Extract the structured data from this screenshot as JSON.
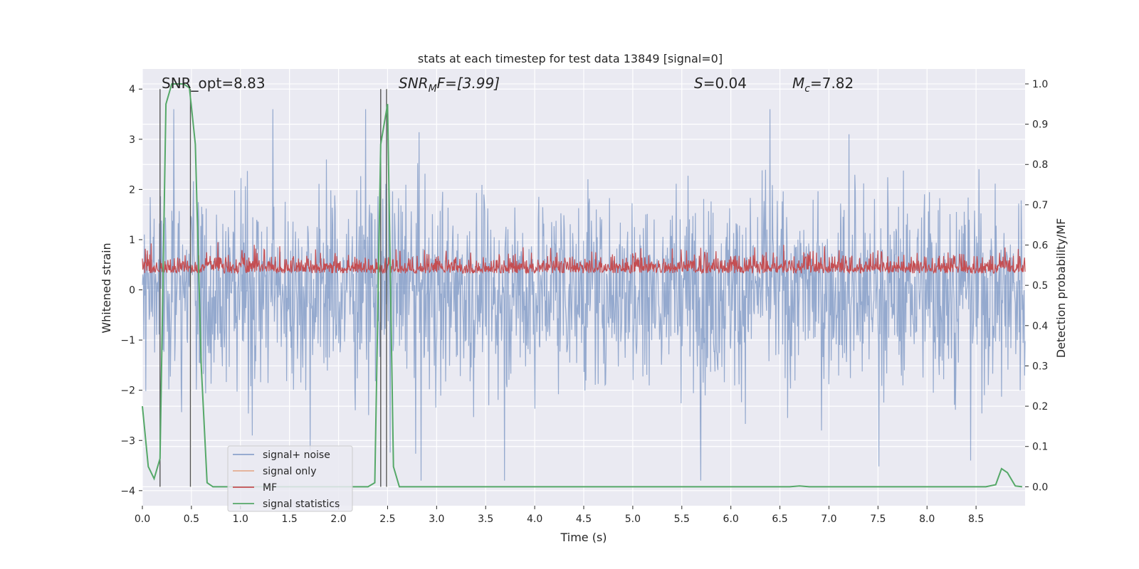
{
  "chart_data": {
    "type": "line",
    "title": "stats at each timestep for test data 13849 [signal=0]",
    "xlabel": "Time (s)",
    "ylabel": "Whitened strain",
    "y2label": "Detection probability/MF",
    "xlim": [
      0,
      9
    ],
    "ylim": [
      -4.3,
      4.4
    ],
    "y2lim": [
      -0.047,
      1.037
    ],
    "xticks": [
      0.0,
      0.5,
      1.0,
      1.5,
      2.0,
      2.5,
      3.0,
      3.5,
      4.0,
      4.5,
      5.0,
      5.5,
      6.0,
      6.5,
      7.0,
      7.5,
      8.0,
      8.5
    ],
    "xtick_labels": [
      "0.0",
      "0.5",
      "1.0",
      "1.5",
      "2.0",
      "2.5",
      "3.0",
      "3.5",
      "4.0",
      "4.5",
      "5.0",
      "5.5",
      "6.0",
      "6.5",
      "7.0",
      "7.5",
      "8.0",
      "8.5"
    ],
    "yticks": [
      -4,
      -3,
      -2,
      -1,
      0,
      1,
      2,
      3,
      4
    ],
    "ytick_labels": [
      "−4",
      "−3",
      "−2",
      "−1",
      "0",
      "1",
      "2",
      "3",
      "4"
    ],
    "y2ticks": [
      0.0,
      0.1,
      0.2,
      0.3,
      0.4,
      0.5,
      0.6,
      0.7,
      0.8,
      0.9,
      1.0
    ],
    "y2tick_labels": [
      "0.0",
      "0.1",
      "0.2",
      "0.3",
      "0.4",
      "0.5",
      "0.6",
      "0.7",
      "0.8",
      "0.9",
      "1.0"
    ],
    "legend_location": "lower-left",
    "series": [
      {
        "name": "signal+ noise",
        "color": "#4c72b0",
        "axis": "left",
        "description": "noisy whitened strain, roughly within ±2.5 with spikes to ±3.8",
        "amplitude_range": [
          -3.8,
          3.6
        ]
      },
      {
        "name": "signal only",
        "color": "#dd8452",
        "axis": "left",
        "description": "not visible (signal=0)"
      },
      {
        "name": "MF",
        "color": "#c44e52",
        "axis": "left",
        "description": "matched-filter output, roughly between 0 and 0.8 with peaks near 1.0",
        "amplitude_range": [
          0.0,
          1.0
        ]
      },
      {
        "name": "signal statistics",
        "color": "#55a868",
        "axis": "right",
        "x": [
          0.0,
          0.06,
          0.12,
          0.18,
          0.24,
          0.3,
          0.36,
          0.42,
          0.48,
          0.54,
          0.6,
          0.66,
          0.72,
          0.9,
          1.5,
          2.0,
          2.3,
          2.37,
          2.43,
          2.5,
          2.56,
          2.62,
          2.7,
          3.0,
          4.0,
          5.0,
          6.0,
          6.6,
          6.7,
          6.8,
          7.0,
          8.0,
          8.6,
          8.7,
          8.76,
          8.82,
          8.9,
          8.97
        ],
        "values": [
          0.2,
          0.05,
          0.02,
          0.07,
          0.95,
          1.0,
          1.0,
          1.0,
          0.99,
          0.85,
          0.3,
          0.01,
          0.0,
          0.0,
          0.0,
          0.0,
          0.0,
          0.01,
          0.85,
          0.95,
          0.05,
          0.0,
          0.0,
          0.0,
          0.0,
          0.0,
          0.0,
          0.0,
          0.002,
          0.0,
          0.0,
          0.0,
          0.0,
          0.005,
          0.045,
          0.035,
          0.002,
          0.0
        ]
      }
    ],
    "vertical_lines": [
      0.18,
      0.49,
      2.43,
      2.49
    ],
    "annotations": {
      "snr_opt": "SNR_opt=8.83",
      "snr_mf_name": "SNR",
      "snr_mf_sub": "M",
      "snr_mf_tail": "F=[3.99]",
      "s_name": "S",
      "s_value": "=0.04",
      "mc_name": "M",
      "mc_sub": "c",
      "mc_value": "=7.82"
    }
  }
}
